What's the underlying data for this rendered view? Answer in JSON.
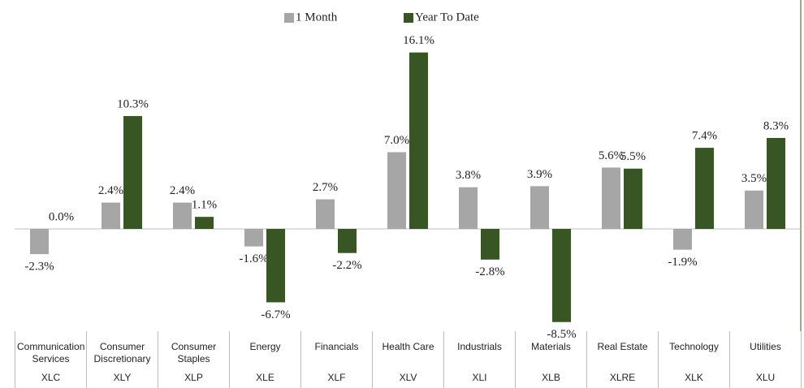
{
  "chart_data": {
    "type": "bar",
    "categories": [
      "Communication Services",
      "Consumer Discretionary",
      "Consumer Staples",
      "Energy",
      "Financials",
      "Health Care",
      "Industrials",
      "Materials",
      "Real Estate",
      "Technology",
      "Utilities"
    ],
    "tickers": [
      "XLC",
      "XLY",
      "XLP",
      "XLE",
      "XLF",
      "XLV",
      "XLI",
      "XLB",
      "XLRE",
      "XLK",
      "XLU"
    ],
    "series": [
      {
        "name": "1 Month",
        "color": "#a6a6a6",
        "values": [
          -2.3,
          2.4,
          2.4,
          -1.6,
          2.7,
          7.0,
          3.8,
          3.9,
          5.6,
          -1.9,
          3.5
        ],
        "value_labels": [
          "-2.3%",
          "2.4%",
          "2.4%",
          "-1.6%",
          "2.7%",
          "7.0%",
          "3.8%",
          "3.9%",
          "5.6%",
          "-1.9%",
          "3.5%"
        ]
      },
      {
        "name": "Year To Date",
        "color": "#375623",
        "values": [
          0.0,
          10.3,
          1.1,
          -6.7,
          -2.2,
          16.1,
          -2.8,
          -8.5,
          5.5,
          7.4,
          8.3
        ],
        "value_labels": [
          "0.0%",
          "10.3%",
          "1.1%",
          "-6.7%",
          "-2.2%",
          "16.1%",
          "-2.8%",
          "-8.5%",
          "5.5%",
          "7.4%",
          "8.3%"
        ]
      }
    ],
    "ylim": [
      -10,
      18
    ]
  }
}
